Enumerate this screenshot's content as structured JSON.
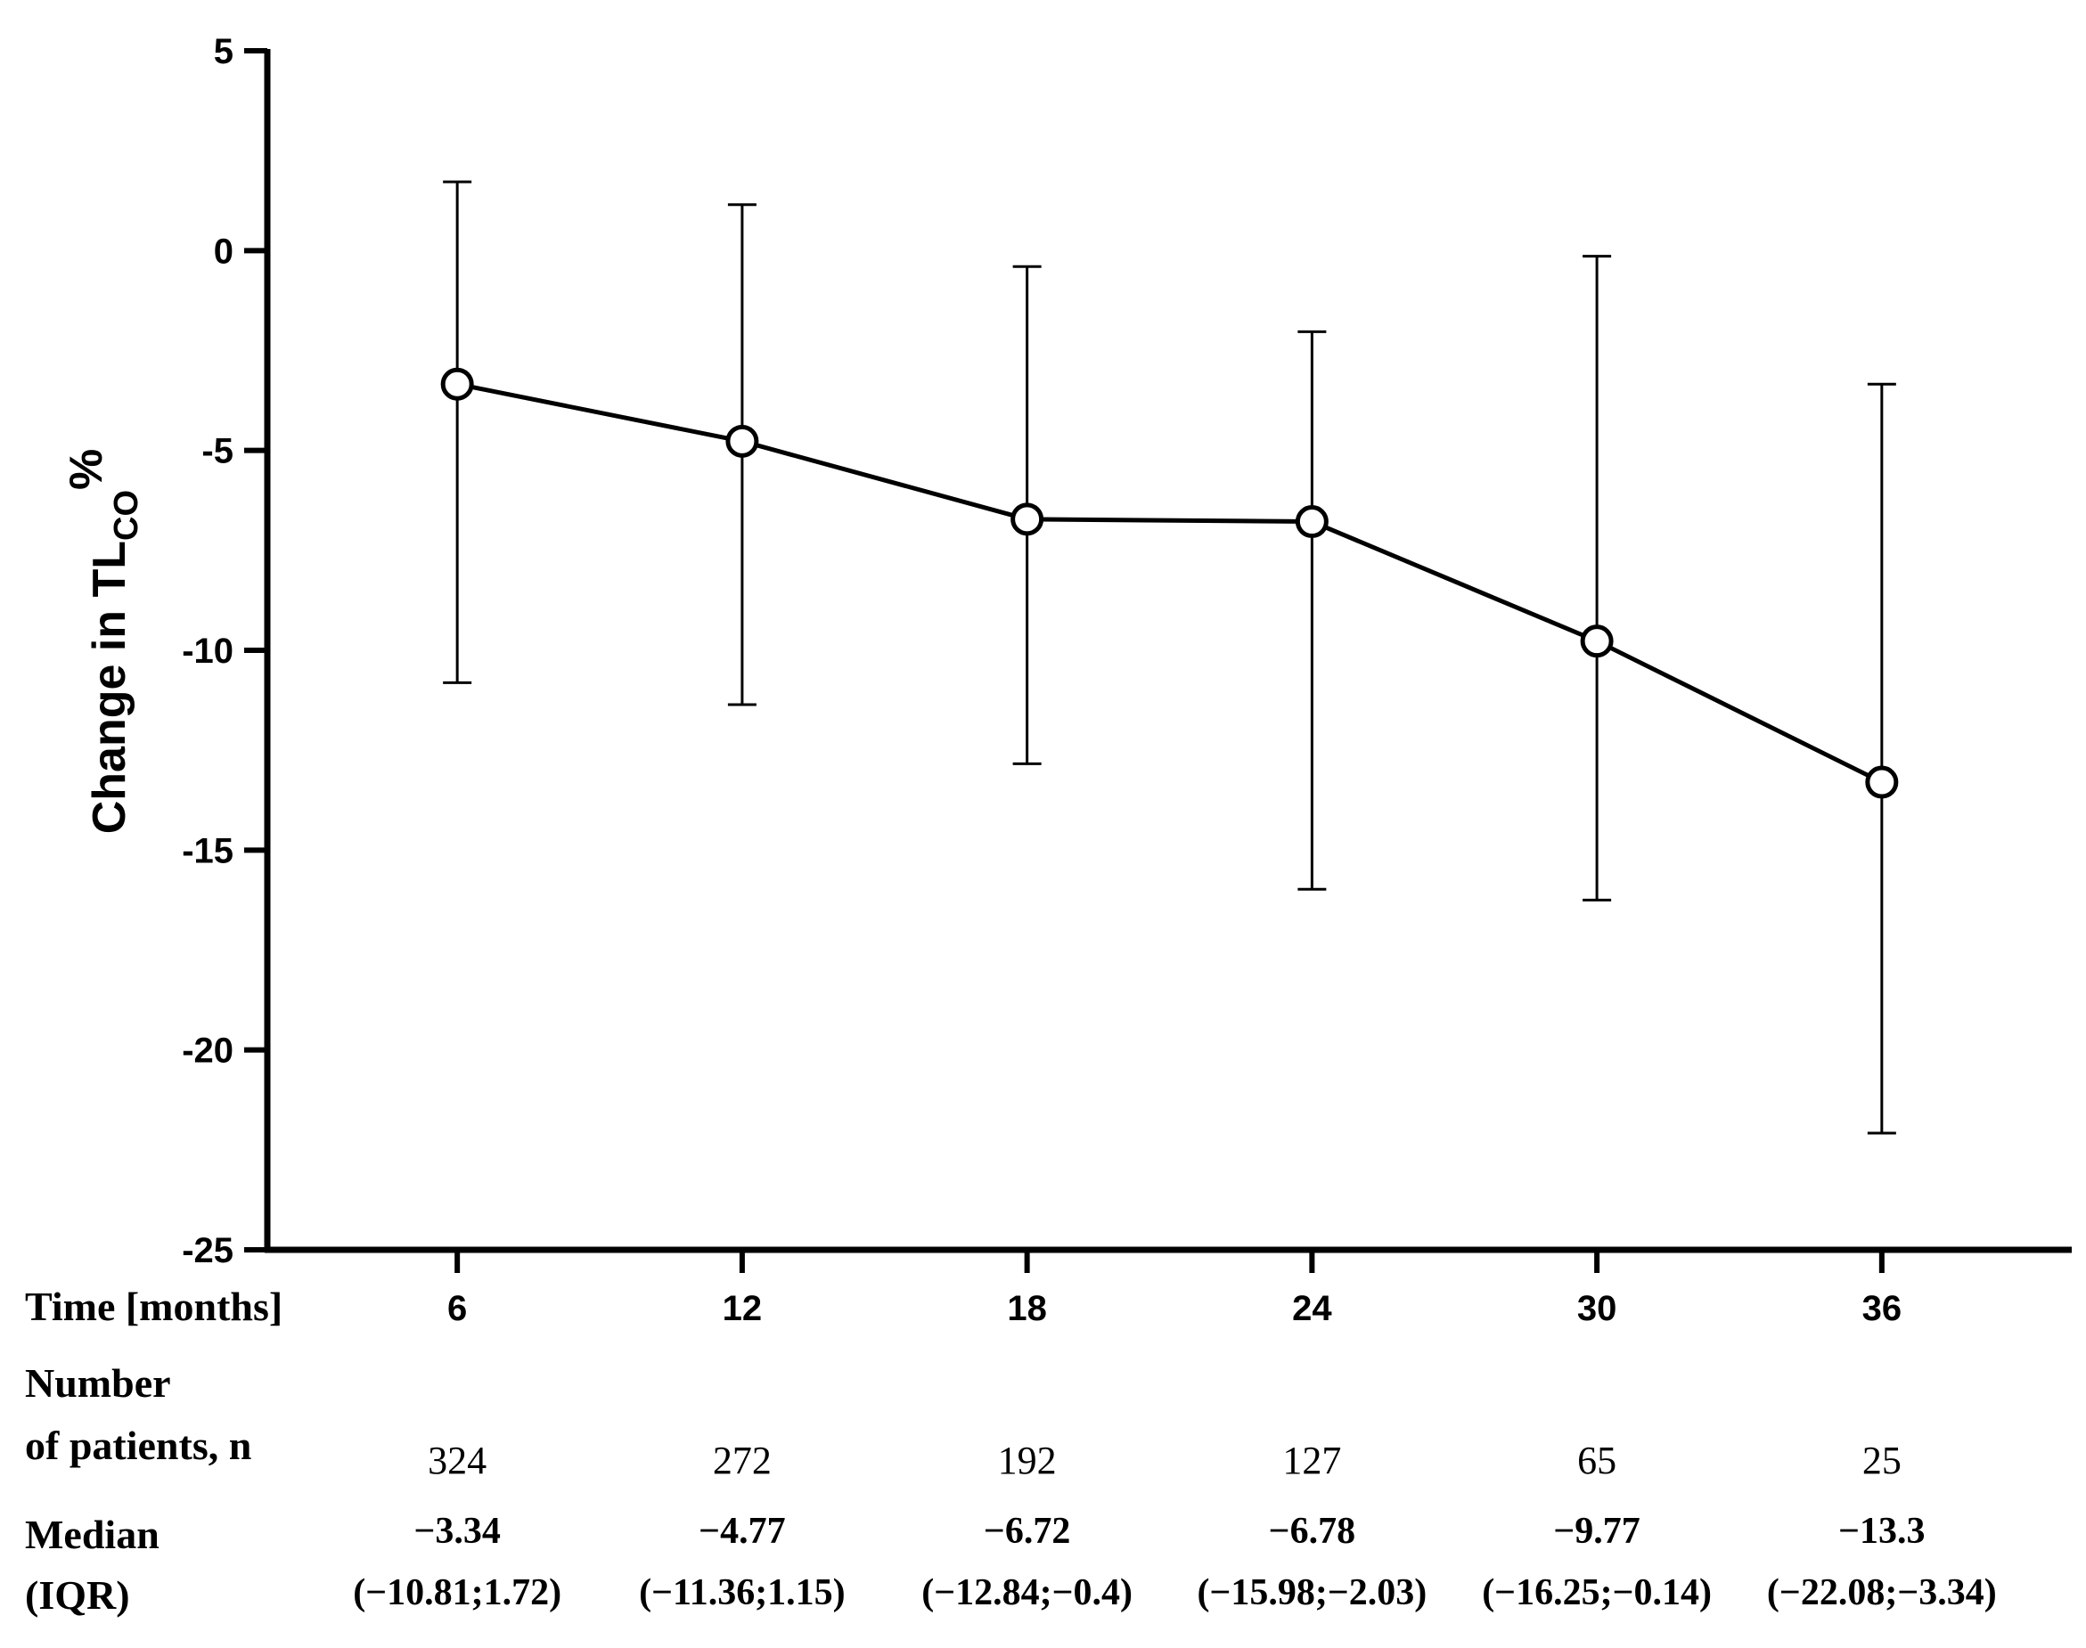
{
  "chart_data": {
    "type": "line",
    "ylabel": {
      "main": "Change in TL",
      "sub": "CO",
      "suffix": "%"
    },
    "ylim": [
      -25,
      5
    ],
    "yticks": [
      "5",
      "0",
      "-5",
      "-10",
      "-15",
      "-20",
      "-25"
    ],
    "ytick_values": [
      5,
      0,
      -5,
      -10,
      -15,
      -20,
      -25
    ],
    "x_values": [
      6,
      12,
      18,
      24,
      30,
      36
    ],
    "xlim": [
      2,
      40
    ],
    "series": [
      {
        "name": "Median change in TLCO%",
        "values": [
          -3.34,
          -4.77,
          -6.72,
          -6.78,
          -9.77,
          -13.3
        ],
        "error_low": [
          -10.81,
          -11.36,
          -12.84,
          -15.98,
          -16.25,
          -22.08
        ],
        "error_high": [
          1.72,
          1.15,
          -0.4,
          -2.03,
          -0.14,
          -3.34
        ]
      }
    ],
    "marker": "open-circle",
    "grid": false
  },
  "table": {
    "time_label": "Time [months]",
    "time_values": [
      "6",
      "12",
      "18",
      "24",
      "30",
      "36"
    ],
    "patients_label_line1": "Number",
    "patients_label_line2": "of patients, n",
    "patients_values": [
      "324",
      "272",
      "192",
      "127",
      "65",
      "25"
    ],
    "median_label_line1": "Median",
    "median_label_line2": "(IQR)",
    "median_values": [
      "−3.34",
      "−4.77",
      "−6.72",
      "−6.78",
      "−9.77",
      "−13.3"
    ],
    "iqr_values": [
      "(−10.81;1.72)",
      "(−11.36;1.15)",
      "(−12.84;−0.4)",
      "(−15.98;−2.03)",
      "(−16.25;−0.14)",
      "(−22.08;−3.34)"
    ]
  },
  "colors": {
    "line": "#000000",
    "background": "#ffffff"
  }
}
